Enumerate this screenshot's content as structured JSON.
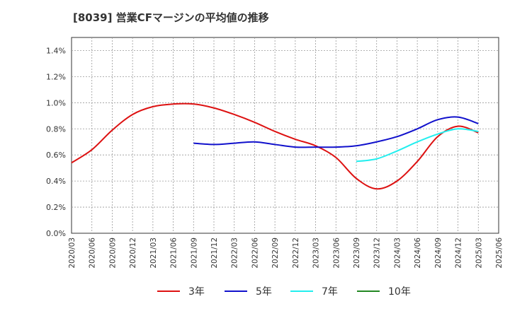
{
  "title": "[8039]  営業CFマージンの平均値の推移",
  "chart_data": {
    "type": "line",
    "title": "[8039]  営業CFマージンの平均値の推移",
    "xlabel": "",
    "ylabel": "",
    "ylim": [
      0,
      1.5
    ],
    "yticks": [
      "0.0%",
      "0.2%",
      "0.4%",
      "0.6%",
      "0.8%",
      "1.0%",
      "1.2%",
      "1.4%"
    ],
    "x": [
      "2020/03",
      "2020/06",
      "2020/09",
      "2020/12",
      "2021/03",
      "2021/06",
      "2021/09",
      "2021/12",
      "2022/03",
      "2022/06",
      "2022/09",
      "2022/12",
      "2023/03",
      "2023/06",
      "2023/09",
      "2023/12",
      "2024/03",
      "2024/06",
      "2024/09",
      "2024/12",
      "2025/03",
      "2025/06"
    ],
    "grid": true,
    "legend_position": "bottom",
    "series": [
      {
        "name": "3年",
        "color": "#dd1111",
        "values": [
          0.54,
          0.64,
          0.79,
          0.91,
          0.97,
          0.99,
          0.99,
          0.96,
          0.91,
          0.85,
          0.78,
          0.72,
          0.67,
          0.58,
          0.42,
          0.34,
          0.4,
          0.55,
          0.74,
          0.82,
          0.77,
          null
        ]
      },
      {
        "name": "5年",
        "color": "#1111cc",
        "values": [
          null,
          null,
          null,
          null,
          null,
          null,
          0.69,
          0.68,
          0.69,
          0.7,
          0.68,
          0.66,
          0.66,
          0.66,
          0.67,
          0.7,
          0.74,
          0.8,
          0.87,
          0.89,
          0.84,
          null
        ]
      },
      {
        "name": "7年",
        "color": "#22eeee",
        "values": [
          null,
          null,
          null,
          null,
          null,
          null,
          null,
          null,
          null,
          null,
          null,
          null,
          null,
          null,
          0.55,
          0.57,
          0.63,
          0.7,
          0.76,
          0.8,
          0.78,
          null
        ]
      },
      {
        "name": "10年",
        "color": "#228822",
        "values": [
          null,
          null,
          null,
          null,
          null,
          null,
          null,
          null,
          null,
          null,
          null,
          null,
          null,
          null,
          null,
          null,
          null,
          null,
          null,
          null,
          null,
          null
        ]
      }
    ]
  }
}
